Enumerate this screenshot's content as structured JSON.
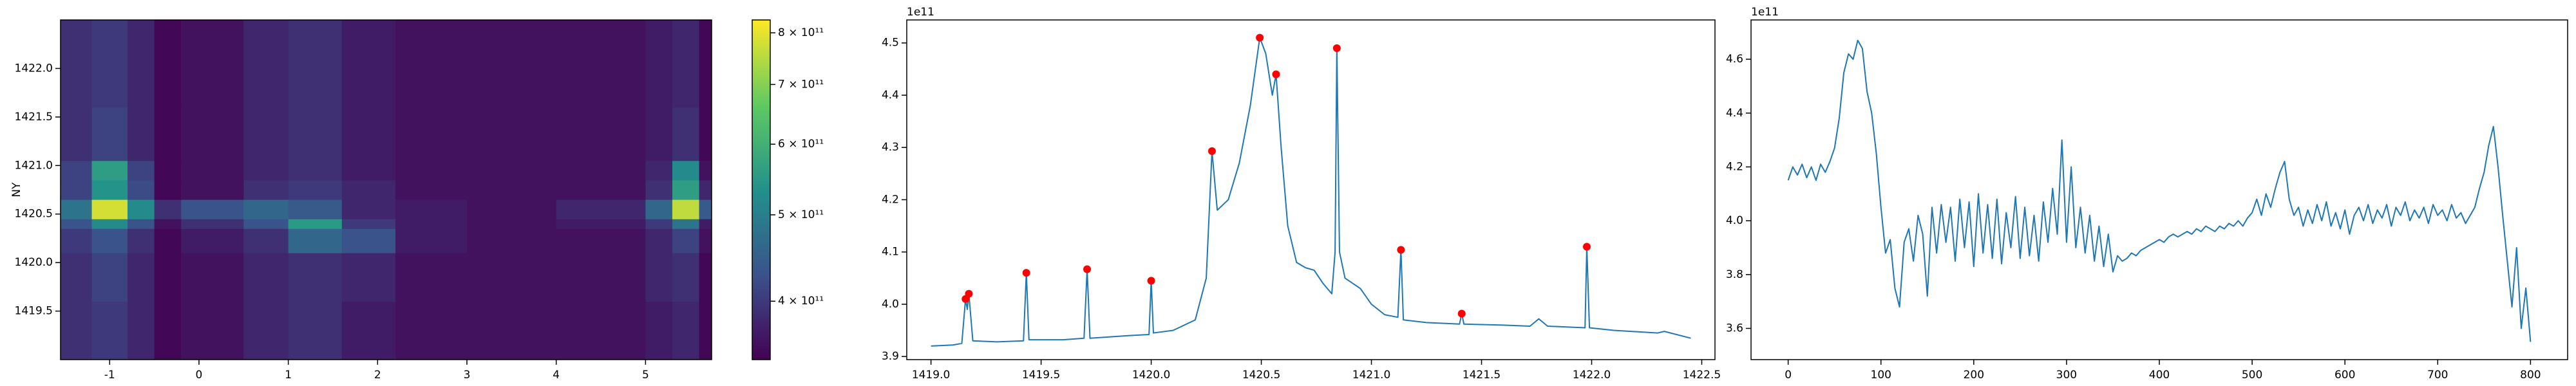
{
  "chart_data": [
    {
      "type": "heatmap",
      "ylabel": "NY",
      "xlim": [
        -1.55,
        5.74
      ],
      "ylim": [
        1419.0,
        1422.5
      ],
      "xticks": [
        -1,
        0,
        1,
        2,
        3,
        4,
        5
      ],
      "yticks": [
        1419.5,
        {
          "value": 1420,
          "label": "1420.0"
        },
        1420.5,
        {
          "value": 1421,
          "label": "1421.0"
        },
        1421.5,
        {
          "value": 1422,
          "label": "1422.0"
        }
      ],
      "xbins": [
        -1.55,
        -1.2,
        -0.8,
        -0.5,
        -0.2,
        0.5,
        1.0,
        1.6,
        2.2,
        3.0,
        4.0,
        5.0,
        5.3,
        5.6,
        5.74
      ],
      "ybins": [
        1419.0,
        1419.6,
        1420.1,
        1420.35,
        1420.45,
        1420.65,
        1420.85,
        1421.05,
        1421.6,
        1422.5
      ],
      "z": [
        [
          390000000000.0,
          400000000000.0,
          380000000000.0,
          350000000000.0,
          360000000000.0,
          380000000000.0,
          390000000000.0,
          370000000000.0,
          360000000000.0,
          360000000000.0,
          360000000000.0,
          370000000000.0,
          380000000000.0,
          350000000000.0
        ],
        [
          390000000000.0,
          410000000000.0,
          380000000000.0,
          350000000000.0,
          360000000000.0,
          380000000000.0,
          390000000000.0,
          380000000000.0,
          360000000000.0,
          360000000000.0,
          360000000000.0,
          380000000000.0,
          390000000000.0,
          350000000000.0
        ],
        [
          400000000000.0,
          430000000000.0,
          390000000000.0,
          350000000000.0,
          370000000000.0,
          390000000000.0,
          460000000000.0,
          430000000000.0,
          370000000000.0,
          360000000000.0,
          360000000000.0,
          380000000000.0,
          410000000000.0,
          360000000000.0
        ],
        [
          430000000000.0,
          520000000000.0,
          430000000000.0,
          360000000000.0,
          390000000000.0,
          430000000000.0,
          550000000000.0,
          400000000000.0,
          370000000000.0,
          360000000000.0,
          370000000000.0,
          400000000000.0,
          480000000000.0,
          370000000000.0
        ],
        [
          480000000000.0,
          780000000000.0,
          520000000000.0,
          390000000000.0,
          430000000000.0,
          460000000000.0,
          440000000000.0,
          380000000000.0,
          370000000000.0,
          360000000000.0,
          380000000000.0,
          460000000000.0,
          760000000000.0,
          440000000000.0
        ],
        [
          410000000000.0,
          540000000000.0,
          420000000000.0,
          350000000000.0,
          360000000000.0,
          390000000000.0,
          400000000000.0,
          380000000000.0,
          360000000000.0,
          360000000000.0,
          360000000000.0,
          390000000000.0,
          560000000000.0,
          380000000000.0
        ],
        [
          410000000000.0,
          560000000000.0,
          410000000000.0,
          350000000000.0,
          360000000000.0,
          380000000000.0,
          390000000000.0,
          370000000000.0,
          360000000000.0,
          360000000000.0,
          360000000000.0,
          380000000000.0,
          520000000000.0,
          360000000000.0
        ],
        [
          390000000000.0,
          410000000000.0,
          380000000000.0,
          350000000000.0,
          360000000000.0,
          380000000000.0,
          390000000000.0,
          370000000000.0,
          360000000000.0,
          360000000000.0,
          360000000000.0,
          370000000000.0,
          390000000000.0,
          350000000000.0
        ],
        [
          390000000000.0,
          400000000000.0,
          380000000000.0,
          350000000000.0,
          360000000000.0,
          380000000000.0,
          390000000000.0,
          370000000000.0,
          360000000000.0,
          360000000000.0,
          360000000000.0,
          370000000000.0,
          380000000000.0,
          350000000000.0
        ]
      ],
      "colorbar": {
        "lim": [
          344000000000.0,
          827000000000.0
        ],
        "log": true,
        "ticks": [
          {
            "value": 400000000000.0,
            "label": "4 × 10¹¹"
          },
          {
            "value": 500000000000.0,
            "label": "5 × 10¹¹"
          },
          {
            "value": 600000000000.0,
            "label": "6 × 10¹¹"
          },
          {
            "value": 700000000000.0,
            "label": "7 × 10¹¹"
          },
          {
            "value": 800000000000.0,
            "label": "8 × 10¹¹"
          }
        ]
      }
    },
    {
      "type": "line",
      "offset_label": "1e11",
      "xlim": [
        1418.89,
        1422.56
      ],
      "ylim": [
        3.894,
        4.544
      ],
      "xticks": [
        {
          "value": 1419,
          "label": "1419.0"
        },
        1419.5,
        {
          "value": 1420,
          "label": "1420.0"
        },
        1420.5,
        {
          "value": 1421,
          "label": "1421.0"
        },
        1421.5,
        {
          "value": 1422,
          "label": "1422.0"
        },
        1422.5
      ],
      "yticks": [
        3.9,
        {
          "value": 4,
          "label": "4.0"
        },
        4.1,
        4.2,
        4.3,
        4.4,
        4.5
      ],
      "x": [
        1419.0,
        1419.1,
        1419.14,
        1419.157,
        1419.165,
        1419.172,
        1419.19,
        1419.3,
        1419.42,
        1419.433,
        1419.445,
        1419.6,
        1419.695,
        1419.709,
        1419.722,
        1419.9,
        1419.99,
        1420.0,
        1420.01,
        1420.1,
        1420.2,
        1420.25,
        1420.276,
        1420.3,
        1420.35,
        1420.4,
        1420.45,
        1420.493,
        1420.52,
        1420.55,
        1420.567,
        1420.59,
        1420.62,
        1420.66,
        1420.7,
        1420.74,
        1420.78,
        1420.82,
        1420.835,
        1420.843,
        1420.855,
        1420.88,
        1420.95,
        1421.0,
        1421.06,
        1421.12,
        1421.134,
        1421.145,
        1421.25,
        1421.4,
        1421.41,
        1421.42,
        1421.6,
        1421.72,
        1421.76,
        1421.8,
        1421.97,
        1421.978,
        1421.99,
        1422.1,
        1422.3,
        1422.33,
        1422.45
      ],
      "series": [
        {
          "color": "#1f77b4",
          "values": [
            3.92,
            3.922,
            3.925,
            4.01,
            3.99,
            4.02,
            3.93,
            3.928,
            3.93,
            4.06,
            3.932,
            3.932,
            3.935,
            4.067,
            3.935,
            3.94,
            3.942,
            4.045,
            3.945,
            3.95,
            3.97,
            4.05,
            4.293,
            4.18,
            4.2,
            4.27,
            4.38,
            4.51,
            4.48,
            4.4,
            4.44,
            4.3,
            4.15,
            4.08,
            4.07,
            4.065,
            4.04,
            4.02,
            4.1,
            4.49,
            4.1,
            4.05,
            4.03,
            4.0,
            3.98,
            3.975,
            4.104,
            3.97,
            3.965,
            3.962,
            3.982,
            3.962,
            3.96,
            3.958,
            3.972,
            3.958,
            3.955,
            4.11,
            3.955,
            3.95,
            3.945,
            3.948,
            3.935
          ]
        }
      ],
      "peaks": {
        "color": "#ff0000",
        "x": [
          1419.157,
          1419.172,
          1419.433,
          1419.709,
          1420.0,
          1420.276,
          1420.493,
          1420.567,
          1420.843,
          1421.134,
          1421.41,
          1421.978
        ],
        "values": [
          4.01,
          4.02,
          4.06,
          4.067,
          4.045,
          4.293,
          4.51,
          4.44,
          4.49,
          4.104,
          3.982,
          4.11
        ]
      }
    },
    {
      "type": "line",
      "offset_label": "1e11",
      "xlim": [
        -40,
        840
      ],
      "ylim": [
        3.484,
        4.746
      ],
      "xticks": [
        0,
        100,
        200,
        300,
        400,
        500,
        600,
        700,
        800
      ],
      "yticks": [
        3.6,
        3.8,
        {
          "value": 4,
          "label": "4.0"
        },
        4.2,
        4.4,
        4.6
      ],
      "x": [
        0,
        5,
        10,
        15,
        20,
        25,
        30,
        35,
        40,
        45,
        50,
        55,
        60,
        65,
        70,
        75,
        80,
        85,
        90,
        95,
        100,
        105,
        110,
        115,
        120,
        125,
        130,
        135,
        140,
        145,
        150,
        155,
        160,
        165,
        170,
        175,
        180,
        185,
        190,
        195,
        200,
        205,
        210,
        215,
        220,
        225,
        230,
        235,
        240,
        245,
        250,
        255,
        260,
        265,
        270,
        275,
        280,
        285,
        290,
        295,
        300,
        305,
        310,
        315,
        320,
        325,
        330,
        335,
        340,
        345,
        350,
        355,
        360,
        365,
        370,
        375,
        380,
        385,
        390,
        395,
        400,
        405,
        410,
        415,
        420,
        425,
        430,
        435,
        440,
        445,
        450,
        455,
        460,
        465,
        470,
        475,
        480,
        485,
        490,
        495,
        500,
        505,
        510,
        515,
        520,
        525,
        530,
        535,
        540,
        545,
        550,
        555,
        560,
        565,
        570,
        575,
        580,
        585,
        590,
        595,
        600,
        605,
        610,
        615,
        620,
        625,
        630,
        635,
        640,
        645,
        650,
        655,
        660,
        665,
        670,
        675,
        680,
        685,
        690,
        695,
        700,
        705,
        710,
        715,
        720,
        725,
        730,
        735,
        740,
        745,
        750,
        755,
        760,
        765,
        770,
        775,
        780,
        785,
        790,
        795,
        800
      ],
      "series": [
        {
          "color": "#1f77b4",
          "values": [
            4.15,
            4.2,
            4.17,
            4.21,
            4.16,
            4.2,
            4.15,
            4.21,
            4.18,
            4.22,
            4.27,
            4.38,
            4.55,
            4.62,
            4.6,
            4.67,
            4.64,
            4.48,
            4.4,
            4.25,
            4.05,
            3.88,
            3.93,
            3.75,
            3.68,
            3.92,
            3.97,
            3.85,
            4.02,
            3.95,
            3.72,
            4.05,
            3.88,
            4.06,
            3.92,
            4.05,
            3.85,
            4.08,
            3.9,
            4.07,
            3.83,
            4.1,
            3.88,
            4.06,
            3.86,
            4.08,
            3.84,
            4.03,
            3.9,
            4.09,
            3.86,
            4.05,
            3.87,
            4.02,
            3.85,
            4.07,
            3.92,
            4.12,
            3.95,
            4.3,
            3.92,
            4.2,
            3.9,
            4.05,
            3.88,
            4.02,
            3.85,
            3.98,
            3.83,
            3.95,
            3.81,
            3.87,
            3.85,
            3.86,
            3.88,
            3.87,
            3.89,
            3.9,
            3.91,
            3.92,
            3.93,
            3.92,
            3.94,
            3.95,
            3.94,
            3.95,
            3.96,
            3.95,
            3.97,
            3.96,
            3.98,
            3.97,
            3.96,
            3.98,
            3.97,
            3.99,
            3.98,
            4.0,
            3.98,
            4.01,
            4.03,
            4.08,
            4.02,
            4.1,
            4.05,
            4.12,
            4.18,
            4.22,
            4.08,
            4.02,
            4.05,
            3.98,
            4.04,
            3.99,
            4.06,
            4.0,
            4.07,
            3.98,
            4.03,
            3.97,
            4.04,
            3.95,
            4.02,
            4.05,
            4.0,
            4.06,
            3.99,
            4.04,
            4.01,
            4.06,
            3.98,
            4.05,
            4.02,
            4.07,
            4.0,
            4.04,
            4.01,
            4.05,
            3.99,
            4.06,
            4.02,
            4.04,
            4.0,
            4.06,
            4.01,
            4.03,
            3.99,
            4.02,
            4.05,
            4.12,
            4.18,
            4.28,
            4.35,
            4.2,
            4.02,
            3.85,
            3.68,
            3.9,
            3.6,
            3.75,
            3.55
          ]
        }
      ]
    }
  ]
}
